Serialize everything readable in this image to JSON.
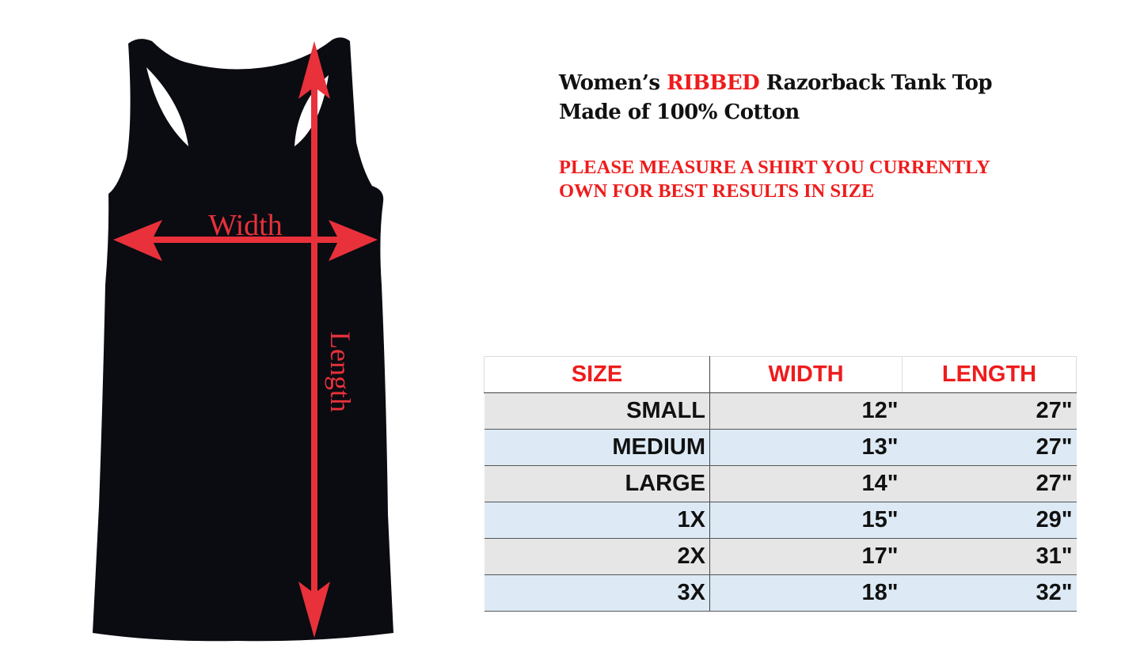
{
  "title": {
    "line1_pre": "Women’s ",
    "line1_highlight": "RIBBED",
    "line1_post": " Razorback Tank Top",
    "line2": "Made of 100% Cotton"
  },
  "note": {
    "line1": "PLEASE MEASURE A SHIRT YOU CURRENTLY",
    "line2": "OWN FOR BEST RESULTS IN SIZE"
  },
  "diagram": {
    "width_label": "Width",
    "length_label": "Length",
    "arrow_color": "#e8313a",
    "garment_color": "#0b0b12"
  },
  "table": {
    "headers": [
      "SIZE",
      "WIDTH",
      "LENGTH"
    ],
    "rows": [
      {
        "size": "SMALL",
        "width": "12\"",
        "length": "27\""
      },
      {
        "size": "MEDIUM",
        "width": "13\"",
        "length": "27\""
      },
      {
        "size": "LARGE",
        "width": "14\"",
        "length": "27\""
      },
      {
        "size": "1X",
        "width": "15\"",
        "length": "29\""
      },
      {
        "size": "2X",
        "width": "17\"",
        "length": "31\""
      },
      {
        "size": "3X",
        "width": "18\"",
        "length": "32\""
      }
    ]
  }
}
